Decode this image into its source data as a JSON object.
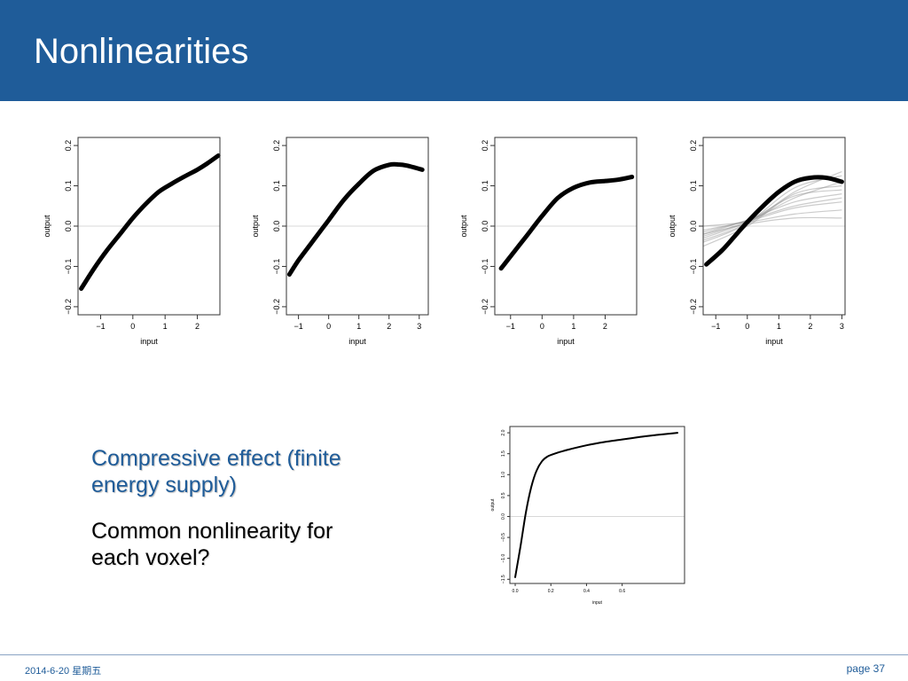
{
  "slide": {
    "title": "Nonlinearities",
    "bullets": [
      "Compressive effect (finite energy supply)",
      "Common nonlinearity for each voxel?"
    ],
    "footer_date": "2014-6-20 星期五",
    "page_label": "page 37"
  },
  "colors": {
    "header": "#1f5c99",
    "accent_text": "#1f5c99"
  },
  "chart_data": [
    {
      "type": "line",
      "xlabel": "input",
      "ylabel": "output",
      "xlim": [
        -1.7,
        2.7
      ],
      "ylim": [
        -0.22,
        0.22
      ],
      "xticks": [
        -1,
        0,
        1,
        2
      ],
      "yticks": [
        -0.2,
        -0.1,
        0.0,
        0.1,
        0.2
      ],
      "xtick_labels": [
        "−1",
        "0",
        "1",
        "2"
      ],
      "ytick_labels": [
        "−0.2",
        "−0.1",
        "0.0",
        "0.1",
        "0.2"
      ],
      "reference_line": 0,
      "series": [
        {
          "x": [
            -1.6,
            -1.2,
            -0.8,
            -0.4,
            0.0,
            0.4,
            0.8,
            1.2,
            1.6,
            2.0,
            2.3,
            2.65
          ],
          "y": [
            -0.155,
            -0.105,
            -0.06,
            -0.02,
            0.02,
            0.055,
            0.085,
            0.105,
            0.123,
            0.14,
            0.155,
            0.175
          ]
        }
      ]
    },
    {
      "type": "line",
      "xlabel": "input",
      "ylabel": "output",
      "xlim": [
        -1.4,
        3.3
      ],
      "ylim": [
        -0.22,
        0.22
      ],
      "xticks": [
        -1,
        0,
        1,
        2,
        3
      ],
      "yticks": [
        -0.2,
        -0.1,
        0.0,
        0.1,
        0.2
      ],
      "xtick_labels": [
        "−1",
        "0",
        "1",
        "2",
        "3"
      ],
      "ytick_labels": [
        "−0.2",
        "−0.1",
        "0.0",
        "0.1",
        "0.2"
      ],
      "reference_line": 0,
      "series": [
        {
          "x": [
            -1.3,
            -1.0,
            -0.5,
            0.0,
            0.5,
            1.0,
            1.5,
            2.0,
            2.3,
            2.6,
            3.1
          ],
          "y": [
            -0.12,
            -0.085,
            -0.035,
            0.015,
            0.065,
            0.105,
            0.138,
            0.152,
            0.153,
            0.15,
            0.14
          ]
        }
      ]
    },
    {
      "type": "line",
      "xlabel": "input",
      "ylabel": "output",
      "xlim": [
        -1.5,
        3.0
      ],
      "ylim": [
        -0.22,
        0.22
      ],
      "xticks": [
        -1,
        0,
        1,
        2
      ],
      "yticks": [
        -0.2,
        -0.1,
        0.0,
        0.1,
        0.2
      ],
      "xtick_labels": [
        "−1",
        "0",
        "1",
        "2"
      ],
      "ytick_labels": [
        "−0.2",
        "−0.1",
        "0.0",
        "0.1",
        "0.2"
      ],
      "reference_line": 0,
      "series": [
        {
          "x": [
            -1.3,
            -1.0,
            -0.5,
            0.0,
            0.5,
            1.0,
            1.5,
            2.0,
            2.4,
            2.85
          ],
          "y": [
            -0.105,
            -0.075,
            -0.025,
            0.025,
            0.07,
            0.095,
            0.108,
            0.112,
            0.115,
            0.122
          ]
        }
      ]
    },
    {
      "type": "line",
      "xlabel": "input",
      "ylabel": "output",
      "xlim": [
        -1.4,
        3.1
      ],
      "ylim": [
        -0.22,
        0.22
      ],
      "xticks": [
        -1,
        0,
        1,
        2,
        3
      ],
      "yticks": [
        -0.2,
        -0.1,
        0.0,
        0.1,
        0.2
      ],
      "xtick_labels": [
        "−1",
        "0",
        "1",
        "2",
        "3"
      ],
      "ytick_labels": [
        "−0.2",
        "−0.1",
        "0.0",
        "0.1",
        "0.2"
      ],
      "reference_line": 0,
      "series": [
        {
          "x": [
            -1.3,
            -0.8,
            -0.4,
            0.0,
            0.5,
            1.0,
            1.5,
            2.0,
            2.5,
            3.0
          ],
          "y": [
            -0.095,
            -0.06,
            -0.025,
            0.01,
            0.05,
            0.085,
            0.11,
            0.12,
            0.12,
            0.11
          ]
        }
      ],
      "background_curves": [
        {
          "x": [
            -1.4,
            0,
            1.5,
            3.0
          ],
          "y": [
            -0.04,
            0.005,
            0.085,
            0.135
          ]
        },
        {
          "x": [
            -1.4,
            0,
            1.5,
            3.0
          ],
          "y": [
            -0.03,
            0.01,
            0.07,
            0.11
          ]
        },
        {
          "x": [
            -1.4,
            0,
            1.5,
            3.0
          ],
          "y": [
            -0.02,
            0.015,
            0.06,
            0.08
          ]
        },
        {
          "x": [
            -1.4,
            0,
            1.5,
            3.0
          ],
          "y": [
            -0.01,
            0.012,
            0.045,
            0.06
          ]
        },
        {
          "x": [
            -1.4,
            0,
            1.5,
            3.0
          ],
          "y": [
            0.0,
            0.01,
            0.03,
            0.04
          ]
        },
        {
          "x": [
            -1.4,
            0,
            1.5,
            3.0
          ],
          "y": [
            -0.05,
            0.0,
            0.08,
            0.1
          ]
        },
        {
          "x": [
            -1.4,
            0,
            1.5,
            3.0
          ],
          "y": [
            -0.02,
            0.005,
            0.02,
            0.02
          ]
        },
        {
          "x": [
            -1.4,
            0,
            1.5,
            3.0
          ],
          "y": [
            -0.035,
            0.008,
            0.095,
            0.125
          ]
        },
        {
          "x": [
            -1.4,
            0,
            1.5,
            3.0
          ],
          "y": [
            -0.015,
            0.014,
            0.05,
            0.07
          ]
        },
        {
          "x": [
            -1.4,
            0,
            1.5,
            3.0
          ],
          "y": [
            -0.025,
            0.012,
            0.075,
            0.09
          ]
        }
      ]
    },
    {
      "type": "line",
      "xlabel": "input",
      "ylabel": "output",
      "xlim": [
        -0.03,
        0.95
      ],
      "ylim": [
        -1.6,
        2.15
      ],
      "xticks": [
        0.0,
        0.2,
        0.4,
        0.6
      ],
      "yticks": [
        -1.5,
        -1.0,
        -0.5,
        0.0,
        0.5,
        1.0,
        1.5,
        2.0
      ],
      "xtick_labels": [
        "0.0",
        "0.2",
        "0.4",
        "0.6"
      ],
      "ytick_labels": [
        "−1.5",
        "−1.0",
        "−0.5",
        "0.0",
        "0.5",
        "1.0",
        "1.5",
        "2.0"
      ],
      "reference_line": 0,
      "series": [
        {
          "x": [
            0.0,
            0.03,
            0.06,
            0.09,
            0.12,
            0.15,
            0.18,
            0.22,
            0.3,
            0.4,
            0.5,
            0.6,
            0.7,
            0.8,
            0.91
          ],
          "y": [
            -1.45,
            -0.7,
            0.1,
            0.7,
            1.1,
            1.32,
            1.43,
            1.5,
            1.6,
            1.7,
            1.78,
            1.84,
            1.9,
            1.95,
            2.0
          ]
        }
      ]
    }
  ]
}
